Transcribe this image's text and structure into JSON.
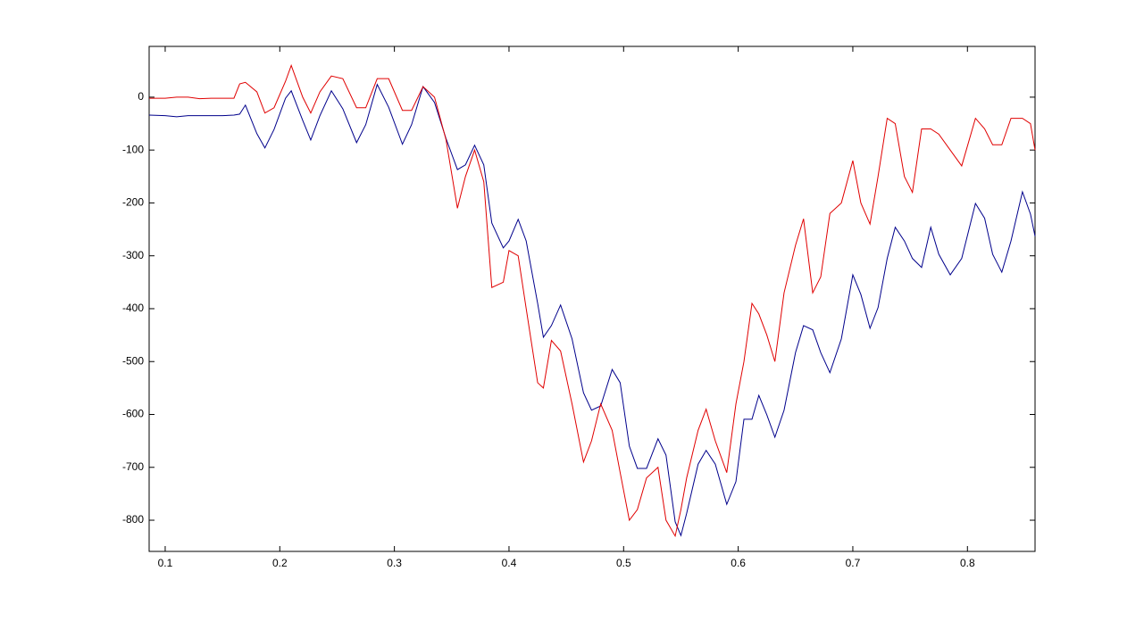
{
  "chart_data": {
    "type": "line",
    "x": [
      0.086,
      0.1,
      0.11,
      0.12,
      0.13,
      0.14,
      0.15,
      0.16,
      0.165,
      0.17,
      0.18,
      0.187,
      0.195,
      0.205,
      0.21,
      0.22,
      0.227,
      0.235,
      0.245,
      0.255,
      0.267,
      0.275,
      0.285,
      0.295,
      0.307,
      0.315,
      0.325,
      0.335,
      0.345,
      0.355,
      0.362,
      0.37,
      0.378,
      0.385,
      0.395,
      0.4,
      0.408,
      0.415,
      0.425,
      0.43,
      0.437,
      0.445,
      0.455,
      0.465,
      0.472,
      0.48,
      0.49,
      0.497,
      0.505,
      0.512,
      0.52,
      0.53,
      0.537,
      0.545,
      0.55,
      0.555,
      0.565,
      0.572,
      0.58,
      0.59,
      0.598,
      0.605,
      0.612,
      0.618,
      0.625,
      0.632,
      0.64,
      0.65,
      0.657,
      0.665,
      0.672,
      0.68,
      0.69,
      0.7,
      0.707,
      0.715,
      0.722,
      0.73,
      0.737,
      0.745,
      0.752,
      0.76,
      0.768,
      0.775,
      0.785,
      0.795,
      0.807,
      0.815,
      0.822,
      0.83,
      0.838,
      0.848,
      0.855,
      0.859
    ],
    "series": [
      {
        "color": "#00008b",
        "values": [
          -34,
          -35,
          -37,
          -35,
          -35,
          -35,
          -35,
          -34,
          -32,
          -15,
          -69,
          -96,
          -61,
          -2,
          12,
          -44,
          -81,
          -35,
          12,
          -22,
          -86,
          -52,
          24,
          -19,
          -89,
          -52,
          20,
          -10,
          -78,
          -137,
          -128,
          -91,
          -128,
          -238,
          -285,
          -272,
          -231,
          -272,
          -390,
          -454,
          -432,
          -393,
          -457,
          -559,
          -592,
          -584,
          -515,
          -540,
          -660,
          -702,
          -702,
          -646,
          -677,
          -803,
          -829,
          -787,
          -694,
          -668,
          -694,
          -770,
          -727,
          -609,
          -609,
          -564,
          -601,
          -643,
          -592,
          -483,
          -432,
          -440,
          -483,
          -521,
          -457,
          -336,
          -373,
          -437,
          -398,
          -305,
          -246,
          -272,
          -305,
          -322,
          -246,
          -297,
          -336,
          -305,
          -201,
          -229,
          -297,
          -331,
          -272,
          -179,
          -221,
          -263
        ]
      },
      {
        "color": "#e00000",
        "values": [
          -2,
          -2,
          0,
          0,
          -3,
          -2,
          -2,
          -2,
          25,
          28,
          10,
          -30,
          -20,
          30,
          60,
          0,
          -30,
          10,
          40,
          35,
          -20,
          -20,
          35,
          35,
          -25,
          -25,
          20,
          0,
          -80,
          -210,
          -150,
          -100,
          -160,
          -360,
          -350,
          -290,
          -300,
          -400,
          -540,
          -550,
          -460,
          -480,
          -580,
          -690,
          -650,
          -580,
          -630,
          -710,
          -800,
          -780,
          -720,
          -700,
          -800,
          -830,
          -780,
          -720,
          -630,
          -590,
          -650,
          -710,
          -580,
          -500,
          -390,
          -410,
          -450,
          -500,
          -370,
          -280,
          -230,
          -370,
          -340,
          -220,
          -200,
          -120,
          -200,
          -240,
          -150,
          -40,
          -50,
          -150,
          -180,
          -60,
          -60,
          -70,
          -100,
          -130,
          -40,
          -60,
          -90,
          -90,
          -40,
          -40,
          -50,
          -100
        ]
      }
    ],
    "xlim": [
      0.086,
      0.859
    ],
    "ylim": [
      -859,
      96
    ],
    "xticks": [
      0.1,
      0.2,
      0.3,
      0.4,
      0.5,
      0.6,
      0.7,
      0.8
    ],
    "yticks": [
      0,
      -100,
      -200,
      -300,
      -400,
      -500,
      -600,
      -700,
      -800
    ]
  }
}
